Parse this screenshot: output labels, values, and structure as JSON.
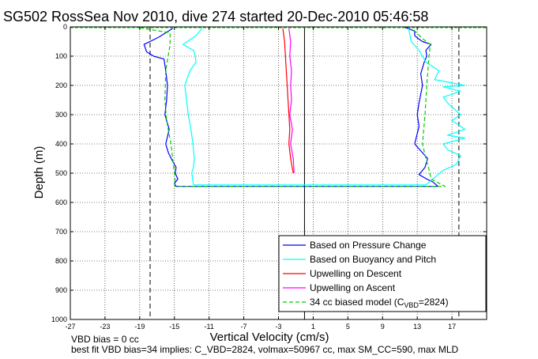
{
  "chart_data": {
    "type": "line",
    "title": "SG502 RossSea Nov 2010, dive 274 started 20-Dec-2010 05:46:58",
    "xlabel": "Vertical Velocity (cm/s)",
    "ylabel": "Depth (m)",
    "xlim": [
      -27,
      21
    ],
    "ylim": [
      0,
      1000
    ],
    "y_reversed": true,
    "grid": true,
    "x_ticks": [
      -27,
      -23,
      -19,
      -15,
      -11,
      -7,
      -3,
      1,
      5,
      9,
      13,
      17
    ],
    "x_tick_labels": [
      "-27",
      "-23",
      "-19",
      "-15",
      "-11",
      "-7",
      "-3",
      "1",
      "5",
      "9",
      "13",
      "17"
    ],
    "y_ticks": [
      0,
      100,
      200,
      300,
      400,
      500,
      600,
      700,
      800,
      900,
      1000
    ],
    "y_tick_labels": [
      "0",
      "100",
      "200",
      "300",
      "400",
      "500",
      "600",
      "700",
      "800",
      "900",
      "1000"
    ],
    "reference_lines": {
      "solid_x": 0,
      "dashed_x": [
        -17.8,
        17.8
      ]
    },
    "legend_position": "bottom-right",
    "series": [
      {
        "name": "Based on Pressure Change",
        "color": "#0000ff",
        "style": "solid",
        "x": [
          -15.2,
          -16.8,
          -18.5,
          -18.2,
          -17.4,
          -16.2,
          -16.0,
          -15.8,
          -15.9,
          -16.1,
          -15.6,
          -16.0,
          -15.7,
          -15.2,
          -14.8,
          -14.9,
          -14.6,
          -15.0,
          -14.8,
          15.4,
          14.8,
          14.1,
          13.2,
          13.9,
          14.2,
          12.7,
          13.2,
          13.0,
          13.2,
          13.6,
          13.4,
          13.8,
          14.1,
          14.0,
          14.6,
          13.6,
          13.1,
          12.7,
          12.7,
          12.2,
          11.6
        ],
        "y": [
          5,
          35,
          60,
          85,
          100,
          110,
          150,
          200,
          250,
          300,
          350,
          400,
          430,
          460,
          480,
          500,
          520,
          535,
          545,
          545,
          530,
          520,
          505,
          480,
          450,
          400,
          340,
          300,
          260,
          200,
          160,
          120,
          100,
          80,
          60,
          50,
          40,
          30,
          15,
          8,
          2
        ]
      },
      {
        "name": "Based on Buoyancy and Pitch",
        "color": "#00ffff",
        "style": "solid",
        "x": [
          -11.8,
          -12.5,
          -14.0,
          -12.8,
          -12.6,
          -12.5,
          -13.2,
          -13.8,
          -13.6,
          -13.4,
          -13.1,
          -12.9,
          -12.8,
          -12.7,
          -12.8,
          -13.0,
          -12.9,
          -12.8,
          14.0,
          14.6,
          15.2,
          16.0,
          17.5,
          18.0,
          16.5,
          16.0,
          18.5,
          16.5,
          18.5,
          17.0,
          18.0,
          16.5,
          16.0,
          18.0,
          16.0,
          18.5,
          15.0,
          15.5,
          14.0,
          13.6,
          13.2,
          12.3,
          12.0
        ],
        "y": [
          5,
          30,
          60,
          80,
          100,
          120,
          150,
          200,
          250,
          300,
          350,
          390,
          420,
          450,
          480,
          500,
          520,
          540,
          540,
          525,
          510,
          490,
          470,
          440,
          420,
          400,
          380,
          370,
          350,
          320,
          300,
          260,
          240,
          220,
          205,
          200,
          180,
          150,
          120,
          100,
          80,
          50,
          5
        ]
      },
      {
        "name": "Upwelling on Descent",
        "color": "#ff0000",
        "style": "solid",
        "x": [
          -2.5,
          -2.3,
          -2.2,
          -2.1,
          -2.0,
          -1.9,
          -1.8,
          -1.7,
          -1.8,
          -1.6,
          -1.3
        ],
        "y": [
          5,
          50,
          100,
          150,
          200,
          250,
          300,
          350,
          400,
          450,
          500
        ]
      },
      {
        "name": "Upwelling on Ascent",
        "color": "#ff00ff",
        "style": "solid",
        "x": [
          -1.8,
          -1.6,
          -1.7,
          -1.5,
          -1.6,
          -1.5,
          -1.7,
          -1.4,
          -1.6,
          -1.3,
          -1.2
        ],
        "y": [
          5,
          50,
          100,
          150,
          200,
          250,
          300,
          350,
          400,
          450,
          500
        ]
      },
      {
        "name": "34 cc biased model (C_VBD=2824)",
        "color": "#00cc00",
        "style": "dashed",
        "x": [
          -19.0,
          -15.5,
          -15.5,
          -16.0,
          -16.1,
          -15.9,
          -15.4,
          -15.2,
          -15.0,
          -14.9,
          -15.0,
          16.2,
          14.6,
          14.3,
          14.0,
          13.6,
          13.9,
          14.1,
          14.3,
          14.5,
          13.6,
          12.4
        ],
        "y": [
          3,
          20,
          60,
          150,
          250,
          320,
          400,
          450,
          500,
          530,
          545,
          545,
          520,
          480,
          450,
          400,
          300,
          200,
          120,
          60,
          40,
          5
        ]
      }
    ],
    "legend_entries": [
      {
        "text": "Based on Pressure Change",
        "color": "#0000ff",
        "dashed": false
      },
      {
        "text": "Based on Buoyancy and Pitch",
        "color": "#00ffff",
        "dashed": false
      },
      {
        "text": "Upwelling on Descent",
        "color": "#ff0000",
        "dashed": false
      },
      {
        "text": "Upwelling on Ascent",
        "color": "#ff00ff",
        "dashed": false
      },
      {
        "text": "34 cc biased model (C",
        "sub": "VBD",
        "tail": "=2824)",
        "color": "#00cc00",
        "dashed": true
      }
    ]
  },
  "footer": {
    "line1": "VBD bias = 0 cc",
    "line2": "best fit VBD bias=34 implies: C_VBD=2824, volmax=50967 cc, max SM_CC=590, max MLD"
  }
}
